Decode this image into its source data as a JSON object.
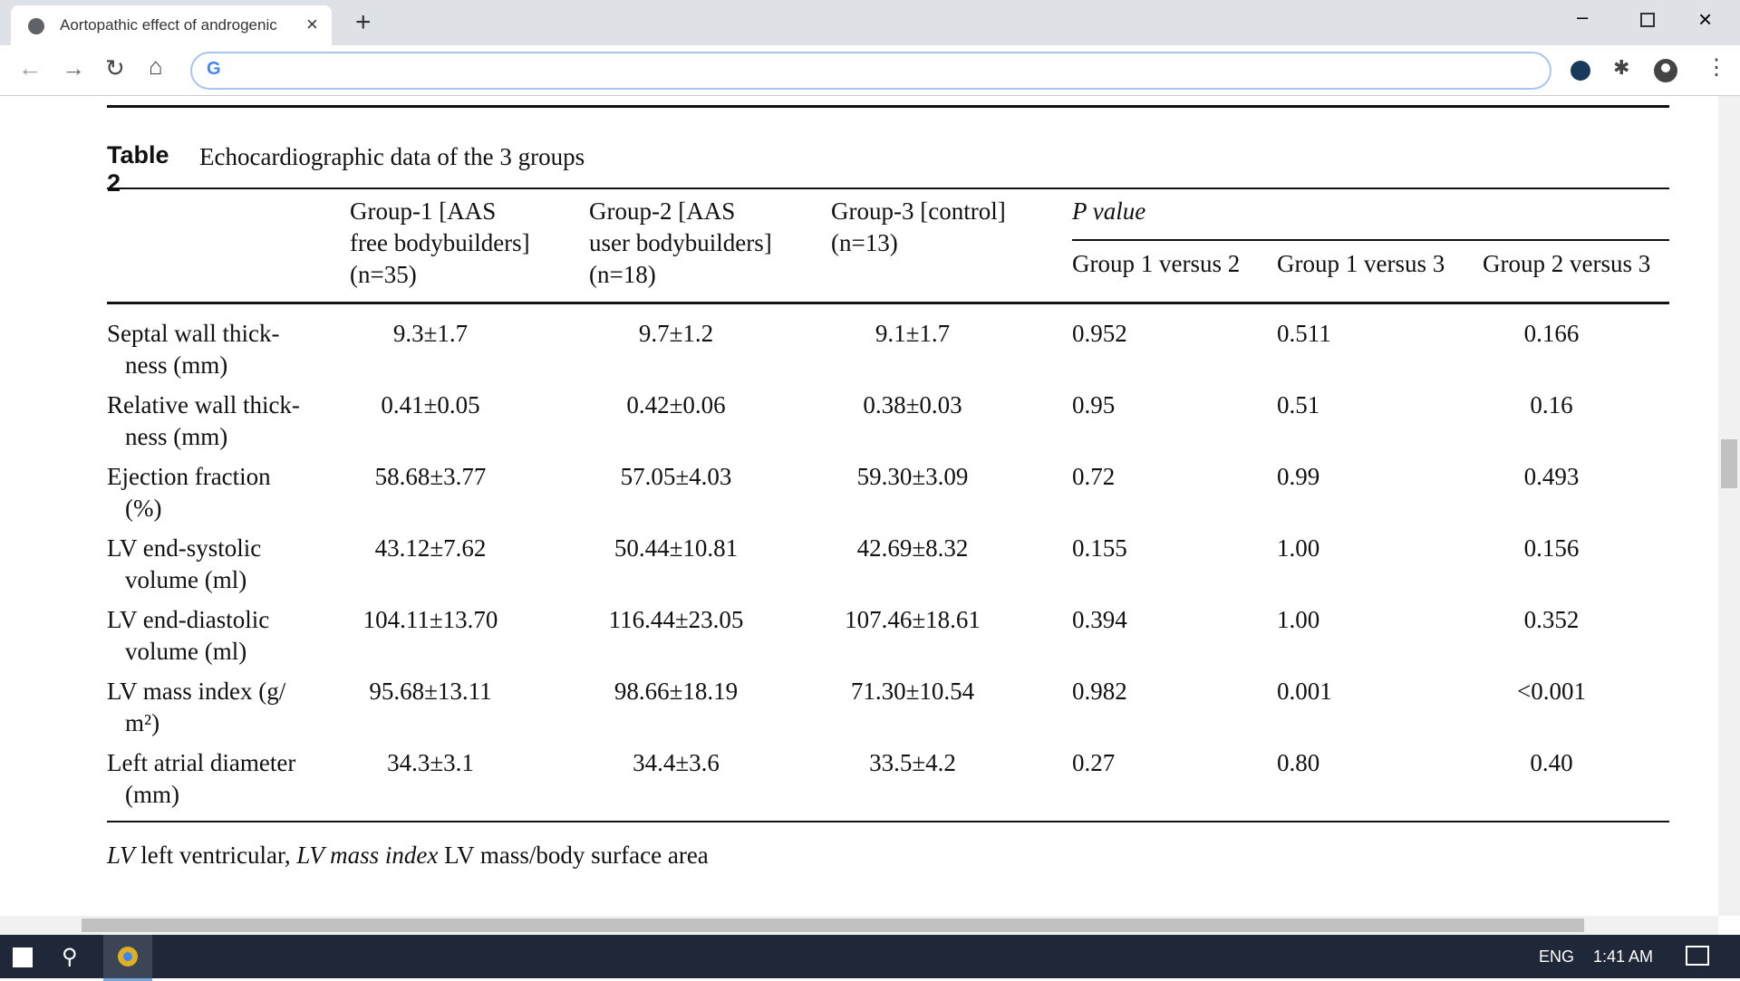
{
  "browser": {
    "tab_title": "Aortopathic effect of androgenic"
  },
  "table": {
    "label": "Table 2",
    "title": "Echocardiographic data of the 3 groups",
    "group_headers": [
      [
        "Group-1 [AAS",
        "free bodybuilders]",
        "(n=35)"
      ],
      [
        "Group-2 [AAS",
        "user bodybuilders]",
        "(n=18)"
      ],
      [
        "Group-3 [control]",
        "(n=13)"
      ]
    ],
    "p_header": "P value",
    "p_subheaders": [
      "Group 1 versus 2",
      "Group 1 versus 3",
      "Group 2 versus 3"
    ],
    "rows": [
      {
        "label": [
          "Septal wall thick-",
          "ness (mm)"
        ],
        "cells": [
          "9.3±1.7",
          "9.7±1.2",
          "9.1±1.7",
          "0.952",
          "0.511",
          "0.166"
        ]
      },
      {
        "label": [
          "Relative wall thick-",
          "ness (mm)"
        ],
        "cells": [
          "0.41±0.05",
          "0.42±0.06",
          "0.38±0.03",
          "0.95",
          "0.51",
          "0.16"
        ]
      },
      {
        "label": [
          "Ejection fraction",
          "(%)"
        ],
        "cells": [
          "58.68±3.77",
          "57.05±4.03",
          "59.30±3.09",
          "0.72",
          "0.99",
          "0.493"
        ]
      },
      {
        "label": [
          "LV end-systolic",
          "volume (ml)"
        ],
        "cells": [
          "43.12±7.62",
          "50.44±10.81",
          "42.69±8.32",
          "0.155",
          "1.00",
          "0.156"
        ]
      },
      {
        "label": [
          "LV end-diastolic",
          "volume (ml)"
        ],
        "cells": [
          "104.11±13.70",
          "116.44±23.05",
          "107.46±18.61",
          "0.394",
          "1.00",
          "0.352"
        ]
      },
      {
        "label": [
          "LV mass index (g/",
          "m²)"
        ],
        "cells": [
          "95.68±13.11",
          "98.66±18.19",
          "71.30±10.54",
          "0.982",
          "0.001",
          "<0.001"
        ]
      },
      {
        "label": [
          "Left atrial diameter",
          "(mm)"
        ],
        "cells": [
          "34.3±3.1",
          "34.4±3.6",
          "33.5±4.2",
          "0.27",
          "0.80",
          "0.40"
        ]
      }
    ],
    "footnote": [
      {
        "text": "LV",
        "italic": true
      },
      {
        "text": " left ventricular, ",
        "italic": false
      },
      {
        "text": "LV mass index",
        "italic": true
      },
      {
        "text": " LV mass/body surface area",
        "italic": false
      }
    ]
  },
  "taskbar": {
    "language": "ENG",
    "time": "1:41 AM"
  }
}
